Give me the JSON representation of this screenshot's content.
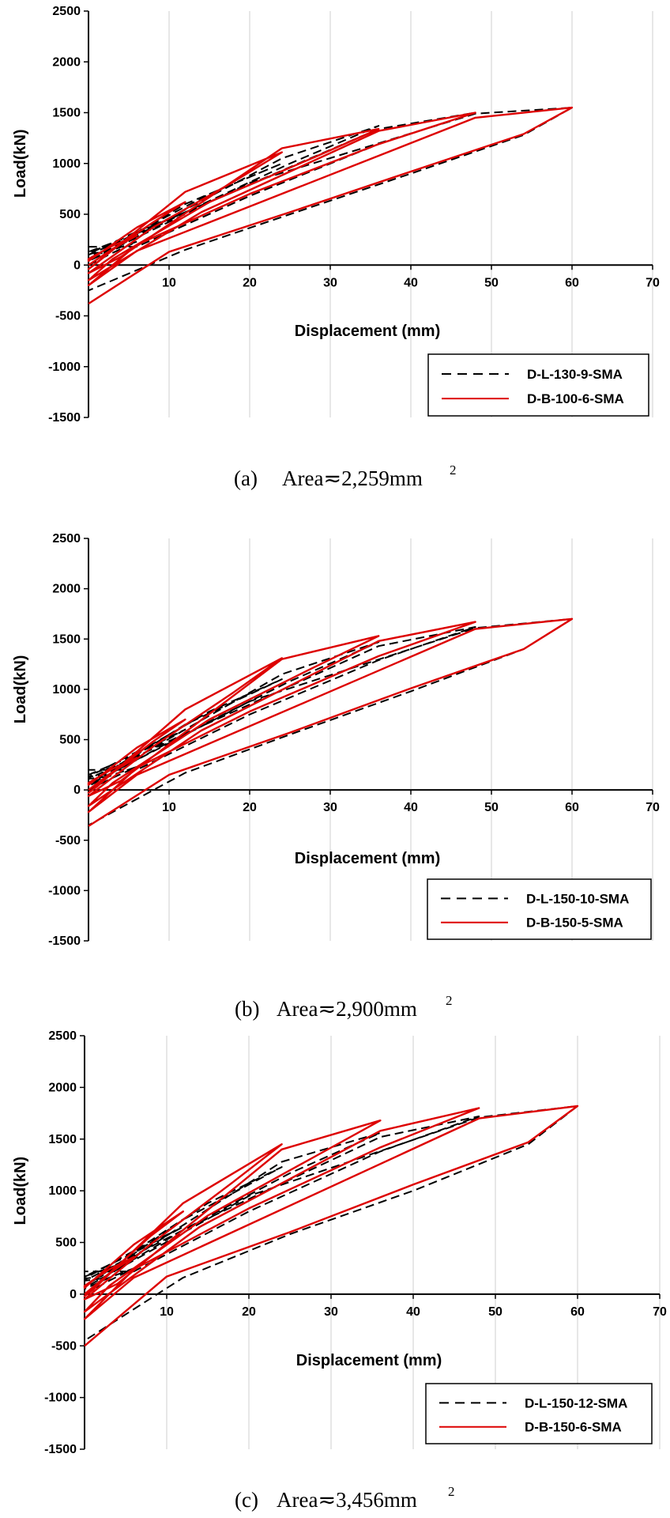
{
  "chart_data": [
    {
      "type": "line",
      "caption_label": "(a)",
      "caption_text": "Area≂2,259mm",
      "caption_sup": "2",
      "xlabel": "Displacement (mm)",
      "ylabel": "Load(kN)",
      "xlim": [
        0,
        70
      ],
      "ylim": [
        -1500,
        2500
      ],
      "xticks": [
        "10",
        "20",
        "30",
        "40",
        "50",
        "60",
        "70"
      ],
      "yticks": [
        "2500",
        "2000",
        "1500",
        "1000",
        "500",
        "0",
        "-500",
        "-1000",
        "-1500"
      ],
      "grid": "vertical",
      "legend_position": "bottom-right",
      "series": [
        {
          "name": "D-L-130-9-SMA",
          "color": "#000000",
          "style": "dashed",
          "x": [
            0,
            3,
            6,
            3,
            0,
            0,
            6,
            12,
            6,
            0,
            2,
            12,
            24,
            15,
            5,
            0,
            5,
            24,
            36,
            25,
            12,
            2,
            0,
            12,
            36,
            48,
            36,
            20,
            6,
            0,
            0,
            20,
            48,
            60,
            54,
            40,
            25,
            12,
            0
          ],
          "y": [
            0,
            120,
            230,
            150,
            40,
            60,
            320,
            520,
            330,
            110,
            130,
            600,
            1000,
            700,
            280,
            130,
            250,
            1050,
            1370,
            1000,
            520,
            120,
            100,
            520,
            1340,
            1500,
            1190,
            680,
            180,
            180,
            40,
            810,
            1490,
            1550,
            1280,
            900,
            500,
            150,
            -250
          ]
        },
        {
          "name": "D-B-100-6-SMA",
          "color": "#dd0000",
          "style": "solid",
          "x": [
            0,
            3,
            6,
            3,
            0,
            0,
            6,
            12,
            8,
            3,
            0,
            1,
            12,
            24,
            18,
            8,
            0,
            4,
            24,
            36,
            28,
            15,
            3,
            0,
            14,
            36,
            48,
            36,
            20,
            6,
            0,
            6,
            48,
            60,
            54,
            40,
            25,
            10,
            0
          ],
          "y": [
            0,
            160,
            290,
            190,
            60,
            40,
            370,
            620,
            420,
            150,
            -40,
            20,
            720,
            1110,
            820,
            370,
            -80,
            80,
            1150,
            1340,
            1060,
            620,
            60,
            -150,
            520,
            1320,
            1500,
            1190,
            700,
            200,
            -200,
            140,
            1450,
            1550,
            1290,
            920,
            520,
            130,
            -380
          ]
        }
      ]
    },
    {
      "type": "line",
      "caption_label": "(b)",
      "caption_text": "Area≂2,900mm",
      "caption_sup": "2",
      "xlabel": "Displacement (mm)",
      "ylabel": "Load(kN)",
      "xlim": [
        0,
        70
      ],
      "ylim": [
        -1500,
        2500
      ],
      "xticks": [
        "10",
        "20",
        "30",
        "40",
        "50",
        "60",
        "70"
      ],
      "yticks": [
        "2500",
        "2000",
        "1500",
        "1000",
        "500",
        "0",
        "-500",
        "-1000",
        "-1500"
      ],
      "grid": "vertical",
      "legend_position": "bottom-right",
      "series": [
        {
          "name": "D-L-150-10-SMA",
          "color": "#000000",
          "style": "dashed",
          "x": [
            0,
            3,
            6,
            3,
            0,
            0,
            6,
            12,
            6,
            0,
            2,
            12,
            24,
            15,
            5,
            0,
            5,
            24,
            36,
            25,
            12,
            2,
            0,
            12,
            36,
            48,
            36,
            20,
            6,
            0,
            0,
            20,
            48,
            60,
            54,
            40,
            25,
            12,
            0
          ],
          "y": [
            0,
            120,
            230,
            150,
            40,
            60,
            360,
            600,
            380,
            130,
            150,
            650,
            1100,
            780,
            320,
            150,
            280,
            1150,
            1470,
            1080,
            560,
            130,
            110,
            560,
            1430,
            1620,
            1290,
            750,
            200,
            200,
            50,
            880,
            1610,
            1700,
            1400,
            980,
            550,
            170,
            -350
          ]
        },
        {
          "name": "D-B-150-5-SMA",
          "color": "#dd0000",
          "style": "solid",
          "x": [
            0,
            3,
            6,
            3,
            0,
            0,
            6,
            12,
            8,
            3,
            0,
            1,
            12,
            24,
            18,
            8,
            0,
            4,
            24,
            36,
            28,
            15,
            3,
            0,
            14,
            36,
            48,
            36,
            20,
            6,
            0,
            6,
            48,
            60,
            54,
            40,
            25,
            10,
            0
          ],
          "y": [
            0,
            180,
            320,
            210,
            70,
            50,
            420,
            700,
            480,
            170,
            -30,
            30,
            800,
            1310,
            970,
            430,
            -60,
            90,
            1300,
            1530,
            1220,
            700,
            70,
            -160,
            590,
            1480,
            1670,
            1330,
            780,
            220,
            -220,
            150,
            1600,
            1700,
            1400,
            1010,
            570,
            150,
            -360
          ]
        }
      ]
    },
    {
      "type": "line",
      "caption_label": "(c)",
      "caption_text": "Area≂3,456mm",
      "caption_sup": "2",
      "xlabel": "Displacement (mm)",
      "ylabel": "Load(kN)",
      "xlim": [
        0,
        70
      ],
      "ylim": [
        -1500,
        2500
      ],
      "xticks": [
        "10",
        "20",
        "30",
        "40",
        "50",
        "60",
        "70"
      ],
      "yticks": [
        "2500",
        "2000",
        "1500",
        "1000",
        "500",
        "0",
        "-500",
        "-1000",
        "-1500"
      ],
      "grid": "vertical",
      "legend_position": "bottom-right",
      "series": [
        {
          "name": "D-L-150-12-SMA",
          "color": "#000000",
          "style": "dashed",
          "x": [
            0,
            3,
            6,
            3,
            0,
            0,
            6,
            12,
            6,
            0,
            2,
            12,
            24,
            15,
            5,
            0,
            5,
            24,
            36,
            25,
            12,
            2,
            0,
            12,
            36,
            48,
            36,
            20,
            6,
            0,
            0,
            20,
            48,
            60,
            54,
            40,
            25,
            12,
            0
          ],
          "y": [
            0,
            130,
            250,
            160,
            50,
            70,
            400,
            650,
            420,
            150,
            170,
            720,
            1230,
            880,
            360,
            170,
            310,
            1280,
            1560,
            1170,
            620,
            150,
            130,
            620,
            1520,
            1720,
            1380,
            800,
            220,
            220,
            60,
            950,
            1710,
            1820,
            1450,
            1000,
            580,
            160,
            -450
          ]
        },
        {
          "name": "D-B-150-6-SMA",
          "color": "#dd0000",
          "style": "solid",
          "x": [
            0,
            3,
            6,
            3,
            0,
            0,
            6,
            12,
            8,
            3,
            0,
            1,
            12,
            24,
            18,
            8,
            0,
            4,
            24,
            36,
            28,
            15,
            3,
            0,
            14,
            36,
            48,
            36,
            20,
            6,
            0,
            6,
            48,
            60,
            54,
            40,
            25,
            10,
            0
          ],
          "y": [
            0,
            200,
            360,
            240,
            80,
            60,
            480,
            800,
            560,
            200,
            -20,
            40,
            880,
            1450,
            1080,
            480,
            -50,
            100,
            1400,
            1680,
            1330,
            760,
            80,
            -170,
            650,
            1580,
            1800,
            1420,
            830,
            240,
            -240,
            160,
            1700,
            1820,
            1470,
            1060,
            600,
            170,
            -500
          ]
        }
      ]
    }
  ]
}
